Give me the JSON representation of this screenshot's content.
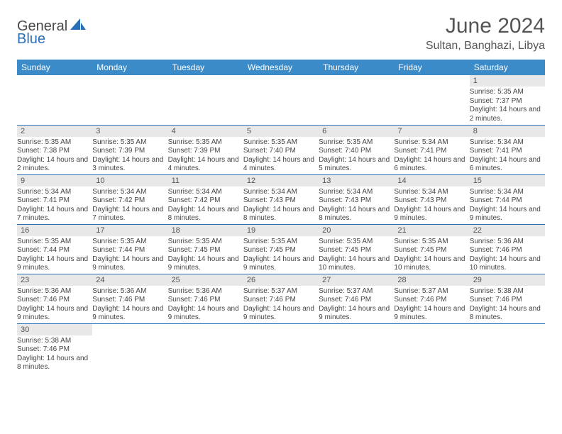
{
  "logo": {
    "part1": "General",
    "part2": "Blue"
  },
  "title": "June 2024",
  "location": "Sultan, Banghazi, Libya",
  "colors": {
    "header_bg": "#3b8bc9",
    "border": "#2a6fb5",
    "daynum_bg": "#e8e8e8",
    "text": "#444444",
    "title_color": "#555555"
  },
  "day_headers": [
    "Sunday",
    "Monday",
    "Tuesday",
    "Wednesday",
    "Thursday",
    "Friday",
    "Saturday"
  ],
  "weeks": [
    [
      null,
      null,
      null,
      null,
      null,
      null,
      {
        "n": "1",
        "sr": "5:35 AM",
        "ss": "7:37 PM",
        "dl": "14 hours and 2 minutes."
      }
    ],
    [
      {
        "n": "2",
        "sr": "5:35 AM",
        "ss": "7:38 PM",
        "dl": "14 hours and 2 minutes."
      },
      {
        "n": "3",
        "sr": "5:35 AM",
        "ss": "7:39 PM",
        "dl": "14 hours and 3 minutes."
      },
      {
        "n": "4",
        "sr": "5:35 AM",
        "ss": "7:39 PM",
        "dl": "14 hours and 4 minutes."
      },
      {
        "n": "5",
        "sr": "5:35 AM",
        "ss": "7:40 PM",
        "dl": "14 hours and 4 minutes."
      },
      {
        "n": "6",
        "sr": "5:35 AM",
        "ss": "7:40 PM",
        "dl": "14 hours and 5 minutes."
      },
      {
        "n": "7",
        "sr": "5:34 AM",
        "ss": "7:41 PM",
        "dl": "14 hours and 6 minutes."
      },
      {
        "n": "8",
        "sr": "5:34 AM",
        "ss": "7:41 PM",
        "dl": "14 hours and 6 minutes."
      }
    ],
    [
      {
        "n": "9",
        "sr": "5:34 AM",
        "ss": "7:41 PM",
        "dl": "14 hours and 7 minutes."
      },
      {
        "n": "10",
        "sr": "5:34 AM",
        "ss": "7:42 PM",
        "dl": "14 hours and 7 minutes."
      },
      {
        "n": "11",
        "sr": "5:34 AM",
        "ss": "7:42 PM",
        "dl": "14 hours and 8 minutes."
      },
      {
        "n": "12",
        "sr": "5:34 AM",
        "ss": "7:43 PM",
        "dl": "14 hours and 8 minutes."
      },
      {
        "n": "13",
        "sr": "5:34 AM",
        "ss": "7:43 PM",
        "dl": "14 hours and 8 minutes."
      },
      {
        "n": "14",
        "sr": "5:34 AM",
        "ss": "7:43 PM",
        "dl": "14 hours and 9 minutes."
      },
      {
        "n": "15",
        "sr": "5:34 AM",
        "ss": "7:44 PM",
        "dl": "14 hours and 9 minutes."
      }
    ],
    [
      {
        "n": "16",
        "sr": "5:35 AM",
        "ss": "7:44 PM",
        "dl": "14 hours and 9 minutes."
      },
      {
        "n": "17",
        "sr": "5:35 AM",
        "ss": "7:44 PM",
        "dl": "14 hours and 9 minutes."
      },
      {
        "n": "18",
        "sr": "5:35 AM",
        "ss": "7:45 PM",
        "dl": "14 hours and 9 minutes."
      },
      {
        "n": "19",
        "sr": "5:35 AM",
        "ss": "7:45 PM",
        "dl": "14 hours and 9 minutes."
      },
      {
        "n": "20",
        "sr": "5:35 AM",
        "ss": "7:45 PM",
        "dl": "14 hours and 10 minutes."
      },
      {
        "n": "21",
        "sr": "5:35 AM",
        "ss": "7:45 PM",
        "dl": "14 hours and 10 minutes."
      },
      {
        "n": "22",
        "sr": "5:36 AM",
        "ss": "7:46 PM",
        "dl": "14 hours and 10 minutes."
      }
    ],
    [
      {
        "n": "23",
        "sr": "5:36 AM",
        "ss": "7:46 PM",
        "dl": "14 hours and 9 minutes."
      },
      {
        "n": "24",
        "sr": "5:36 AM",
        "ss": "7:46 PM",
        "dl": "14 hours and 9 minutes."
      },
      {
        "n": "25",
        "sr": "5:36 AM",
        "ss": "7:46 PM",
        "dl": "14 hours and 9 minutes."
      },
      {
        "n": "26",
        "sr": "5:37 AM",
        "ss": "7:46 PM",
        "dl": "14 hours and 9 minutes."
      },
      {
        "n": "27",
        "sr": "5:37 AM",
        "ss": "7:46 PM",
        "dl": "14 hours and 9 minutes."
      },
      {
        "n": "28",
        "sr": "5:37 AM",
        "ss": "7:46 PM",
        "dl": "14 hours and 9 minutes."
      },
      {
        "n": "29",
        "sr": "5:38 AM",
        "ss": "7:46 PM",
        "dl": "14 hours and 8 minutes."
      }
    ],
    [
      {
        "n": "30",
        "sr": "5:38 AM",
        "ss": "7:46 PM",
        "dl": "14 hours and 8 minutes."
      },
      null,
      null,
      null,
      null,
      null,
      null
    ]
  ],
  "labels": {
    "sunrise": "Sunrise:",
    "sunset": "Sunset:",
    "daylight": "Daylight:"
  }
}
